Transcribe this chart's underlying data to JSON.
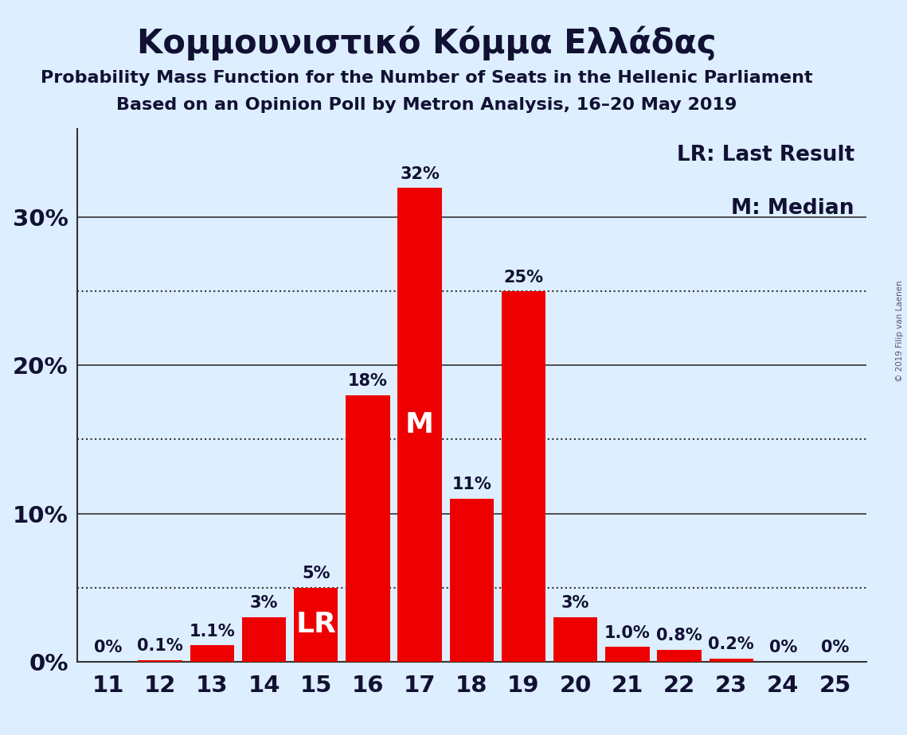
{
  "title": "Κομμουνιστικό Κόμμα Ελλάδας",
  "subtitle1": "Probability Mass Function for the Number of Seats in the Hellenic Parliament",
  "subtitle2": "Based on an Opinion Poll by Metron Analysis, 16–20 May 2019",
  "copyright": "© 2019 Filip van Laenen",
  "categories": [
    11,
    12,
    13,
    14,
    15,
    16,
    17,
    18,
    19,
    20,
    21,
    22,
    23,
    24,
    25
  ],
  "values": [
    0.0,
    0.1,
    1.1,
    3.0,
    5.0,
    18.0,
    32.0,
    11.0,
    25.0,
    3.0,
    1.0,
    0.8,
    0.2,
    0.0,
    0.0
  ],
  "pct_labels": [
    "0%",
    "0.1%",
    "1.1%",
    "3%",
    "5%",
    "18%",
    "32%",
    "11%",
    "25%",
    "3%",
    "1.0%",
    "0.8%",
    "0.2%",
    "0%",
    "0%"
  ],
  "inside_labels": [
    null,
    null,
    null,
    null,
    "LR",
    null,
    "M",
    null,
    null,
    null,
    null,
    null,
    null,
    null,
    null
  ],
  "bar_color": "#ee0000",
  "background_color": "#ddeeff",
  "text_color": "#111133",
  "yticks": [
    0,
    10,
    20,
    30
  ],
  "ytick_labels": [
    "0%",
    "10%",
    "20%",
    "30%"
  ],
  "dotted_lines": [
    5,
    15,
    25
  ],
  "solid_lines": [
    10,
    20,
    30
  ],
  "ylim": [
    0,
    36
  ],
  "legend_lr": "LR: Last Result",
  "legend_m": "M: Median",
  "title_fontsize": 30,
  "subtitle_fontsize": 16,
  "bar_label_fontsize": 15,
  "axis_label_fontsize": 21,
  "legend_fontsize": 19
}
